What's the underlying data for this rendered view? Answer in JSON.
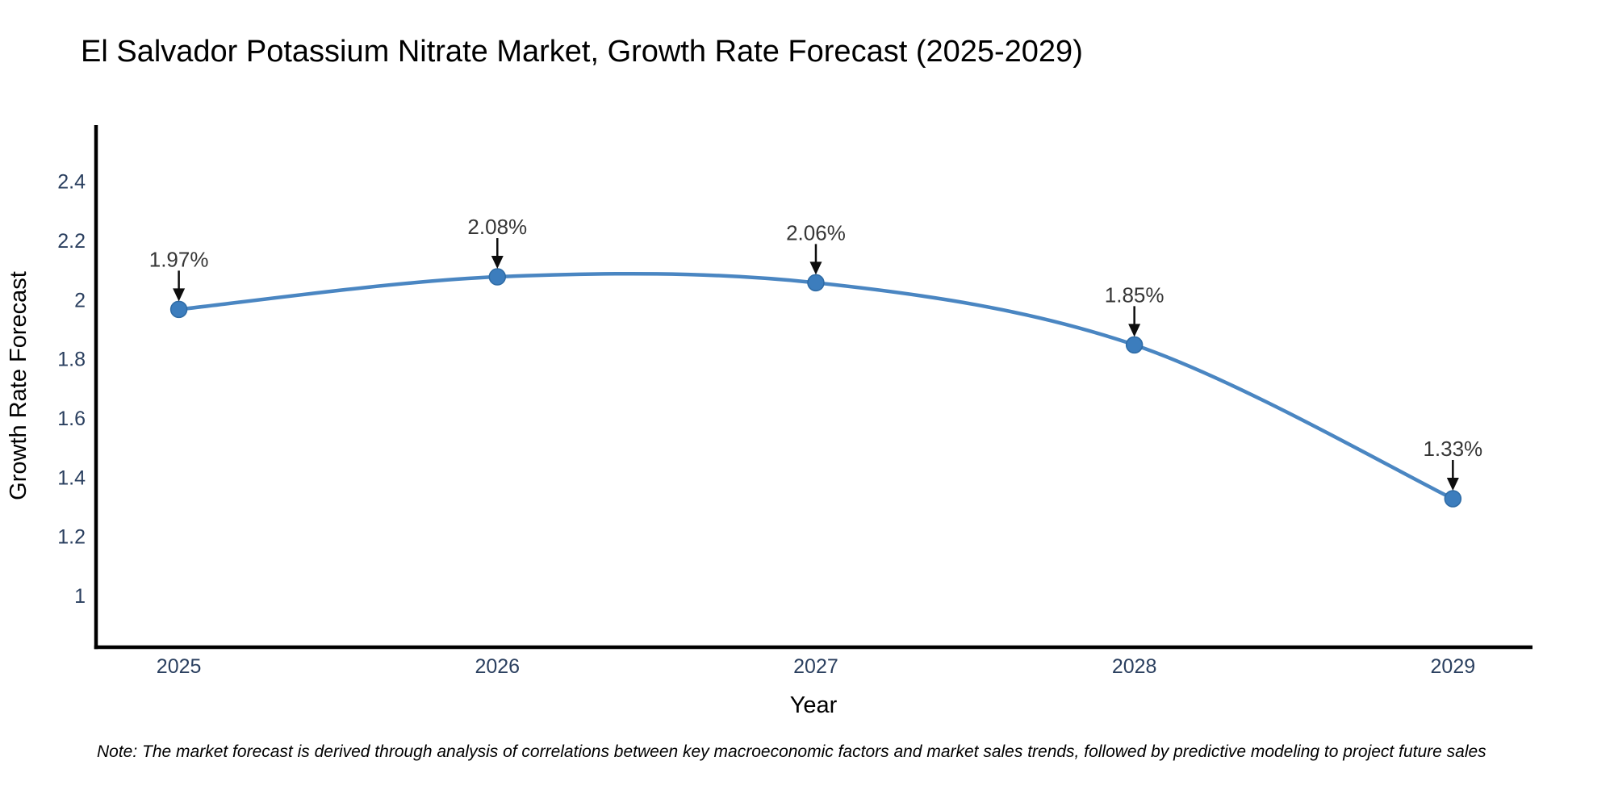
{
  "chart_data": {
    "type": "line",
    "title": "El Salvador Potassium Nitrate Market, Growth Rate Forecast (2025-2029)",
    "xlabel": "Year",
    "ylabel": "Growth Rate Forecast",
    "x": [
      2025,
      2026,
      2027,
      2028,
      2029
    ],
    "series": [
      {
        "name": "Growth Rate Forecast",
        "values": [
          1.97,
          2.08,
          2.06,
          1.85,
          1.33
        ]
      }
    ],
    "point_labels": [
      "1.97%",
      "2.08%",
      "2.06%",
      "1.85%",
      "1.33%"
    ],
    "x_ticks": [
      2025,
      2026,
      2027,
      2028,
      2029
    ],
    "y_ticks": [
      2.4,
      2.2,
      2,
      1.8,
      1.6,
      1.4,
      1.2,
      1
    ],
    "xlim": [
      2024.74,
      2029.25
    ],
    "ylim": [
      0.828,
      2.593
    ],
    "grid": false,
    "legend": "none",
    "line_shape": "spline",
    "colors": {
      "background": "#ffffff",
      "line": "#4a86c2",
      "marker": "#3c7dbd",
      "marker_edge": "#2e6ba5",
      "axis": "#000000",
      "axis_text": "#2a3f5f",
      "title_text": "#2a3f5f",
      "annotation_text": "#363636",
      "arrow": "#0d0d0d"
    }
  },
  "footnote": "Note: The market forecast is derived through analysis of correlations between key macroeconomic factors and market sales trends, followed by predictive modeling to project future sales"
}
